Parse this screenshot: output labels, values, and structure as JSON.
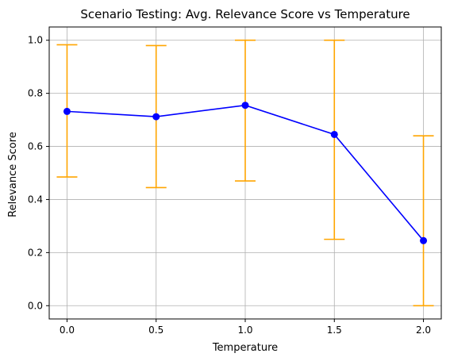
{
  "chart_data": {
    "type": "line",
    "title": "Scenario Testing: Avg. Relevance Score vs Temperature",
    "xlabel": "Temperature",
    "ylabel": "Relevance Score",
    "xlim": [
      -0.1,
      2.1
    ],
    "ylim": [
      -0.05,
      1.05
    ],
    "xticks": [
      0.0,
      0.5,
      1.0,
      1.5,
      2.0
    ],
    "xtick_labels": [
      "0.0",
      "0.5",
      "1.0",
      "1.5",
      "2.0"
    ],
    "yticks": [
      0.0,
      0.2,
      0.4,
      0.6,
      0.8,
      1.0
    ],
    "ytick_labels": [
      "0.0",
      "0.2",
      "0.4",
      "0.6",
      "0.8",
      "1.0"
    ],
    "grid": true,
    "series": [
      {
        "x": [
          0.0,
          0.5,
          1.0,
          1.5,
          2.0
        ],
        "y": [
          0.732,
          0.712,
          0.755,
          0.645,
          0.245
        ],
        "error_low": [
          0.485,
          0.445,
          0.47,
          0.25,
          0.0
        ],
        "error_high": [
          0.983,
          0.98,
          1.0,
          1.0,
          0.64
        ],
        "line_color": "#0000ff",
        "marker_color": "#0000ff",
        "error_color": "#ffa500"
      }
    ]
  }
}
